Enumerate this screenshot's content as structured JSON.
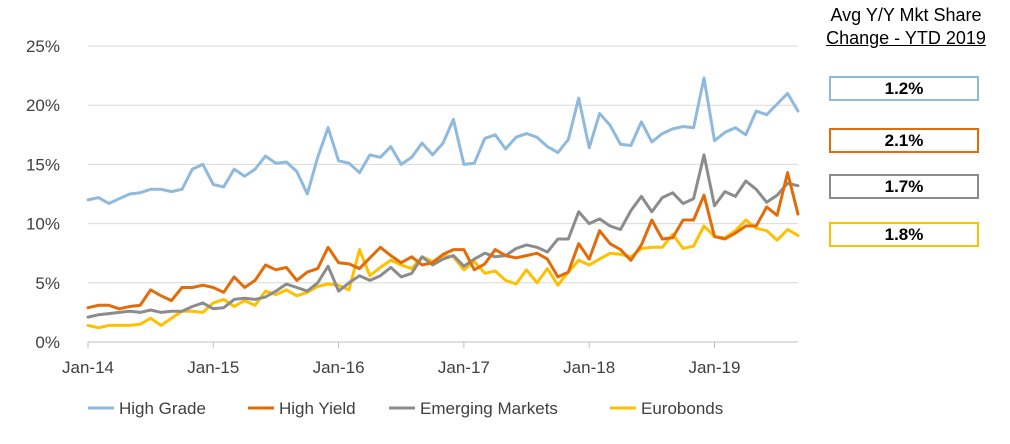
{
  "chart_data": {
    "type": "line",
    "title": "",
    "xlabel": "",
    "ylabel": "",
    "ylim": [
      0,
      25
    ],
    "yticks": [
      "0%",
      "5%",
      "10%",
      "15%",
      "20%",
      "25%"
    ],
    "xticks": [
      {
        "label": "Jan-14",
        "index": 0
      },
      {
        "label": "Jan-15",
        "index": 12
      },
      {
        "label": "Jan-16",
        "index": 24
      },
      {
        "label": "Jan-17",
        "index": 36
      },
      {
        "label": "Jan-18",
        "index": 48
      },
      {
        "label": "Jan-19",
        "index": 60
      }
    ],
    "grid": "horizontal",
    "legend_position": "bottom",
    "series": [
      {
        "name": "High Grade",
        "color": "#8fbadd",
        "values": [
          12.0,
          12.2,
          11.7,
          12.1,
          12.5,
          12.6,
          12.9,
          12.9,
          12.7,
          12.9,
          14.6,
          15.0,
          13.3,
          13.1,
          14.6,
          14.0,
          14.6,
          15.7,
          15.1,
          15.2,
          14.4,
          12.5,
          15.6,
          18.1,
          15.3,
          15.1,
          14.3,
          15.8,
          15.6,
          16.5,
          15.0,
          15.6,
          16.8,
          15.8,
          16.8,
          18.8,
          15.0,
          15.1,
          17.2,
          17.5,
          16.3,
          17.3,
          17.6,
          17.3,
          16.5,
          16.0,
          17.1,
          20.6,
          16.4,
          19.3,
          18.3,
          16.7,
          16.6,
          18.6,
          16.9,
          17.6,
          18.0,
          18.2,
          18.1,
          22.3,
          17.0,
          17.7,
          18.1,
          17.5,
          19.5,
          19.2,
          20.1,
          21.0,
          19.5
        ]
      },
      {
        "name": "High Yield",
        "color": "#e36c0a",
        "values": [
          2.9,
          3.1,
          3.1,
          2.8,
          3.0,
          3.1,
          4.4,
          3.9,
          3.5,
          4.6,
          4.6,
          4.8,
          4.6,
          4.2,
          5.5,
          4.6,
          5.2,
          6.5,
          6.1,
          6.3,
          5.2,
          5.9,
          6.2,
          8.0,
          6.7,
          6.6,
          6.2,
          7.1,
          8.0,
          7.3,
          6.7,
          7.2,
          6.5,
          6.7,
          7.4,
          7.8,
          7.8,
          6.1,
          6.6,
          7.8,
          7.3,
          7.1,
          7.3,
          7.5,
          7.0,
          5.5,
          5.9,
          8.3,
          7.0,
          9.4,
          8.3,
          7.8,
          6.9,
          8.2,
          10.3,
          8.7,
          8.8,
          10.3,
          10.3,
          12.4,
          8.9,
          8.7,
          9.2,
          9.8,
          9.8,
          11.4,
          10.7,
          14.3,
          10.8
        ]
      },
      {
        "name": "Emerging Markets",
        "color": "#8c8c8c",
        "values": [
          2.1,
          2.3,
          2.4,
          2.5,
          2.6,
          2.5,
          2.7,
          2.5,
          2.6,
          2.6,
          3.0,
          3.3,
          2.8,
          2.9,
          3.6,
          3.7,
          3.6,
          3.8,
          4.3,
          4.9,
          4.6,
          4.3,
          5.0,
          6.4,
          4.3,
          5.0,
          5.6,
          5.2,
          5.6,
          6.3,
          5.5,
          5.8,
          7.2,
          6.5,
          7.0,
          7.3,
          6.4,
          7.0,
          7.5,
          7.2,
          7.3,
          7.9,
          8.2,
          8.0,
          7.6,
          8.7,
          8.7,
          11.0,
          10.0,
          10.4,
          9.8,
          9.5,
          11.1,
          12.3,
          11.0,
          12.2,
          12.6,
          11.7,
          12.1,
          15.8,
          11.5,
          12.7,
          12.3,
          13.6,
          12.9,
          11.8,
          12.4,
          13.4,
          13.2
        ]
      },
      {
        "name": "Eurobonds",
        "color": "#ffc000",
        "values": [
          1.4,
          1.2,
          1.4,
          1.4,
          1.4,
          1.5,
          2.0,
          1.4,
          2.0,
          2.6,
          2.6,
          2.5,
          3.3,
          3.6,
          3.0,
          3.5,
          3.1,
          4.3,
          4.0,
          4.4,
          3.9,
          4.2,
          4.7,
          4.9,
          4.8,
          4.4,
          7.8,
          5.6,
          6.3,
          6.9,
          6.5,
          6.2,
          7.2,
          6.8,
          7.3,
          7.2,
          6.1,
          6.8,
          5.8,
          6.0,
          5.2,
          4.9,
          6.1,
          5.0,
          6.2,
          4.8,
          5.9,
          6.9,
          6.5,
          7.0,
          7.5,
          7.4,
          7.2,
          7.9,
          8.0,
          8.0,
          9.1,
          7.9,
          8.1,
          9.8,
          8.9,
          8.8,
          9.4,
          10.3,
          9.6,
          9.4,
          8.6,
          9.5,
          9.0
        ]
      }
    ]
  },
  "side_panel": {
    "title_line1": "Avg Y/Y Mkt Share",
    "title_line2": "Change - YTD 2019",
    "boxes": [
      {
        "label": "1.2%",
        "color": "#8fbadd"
      },
      {
        "label": "2.1%",
        "color": "#e36c0a"
      },
      {
        "label": "1.7%",
        "color": "#8c8c8c"
      },
      {
        "label": "1.8%",
        "color": "#ffc000"
      }
    ]
  }
}
